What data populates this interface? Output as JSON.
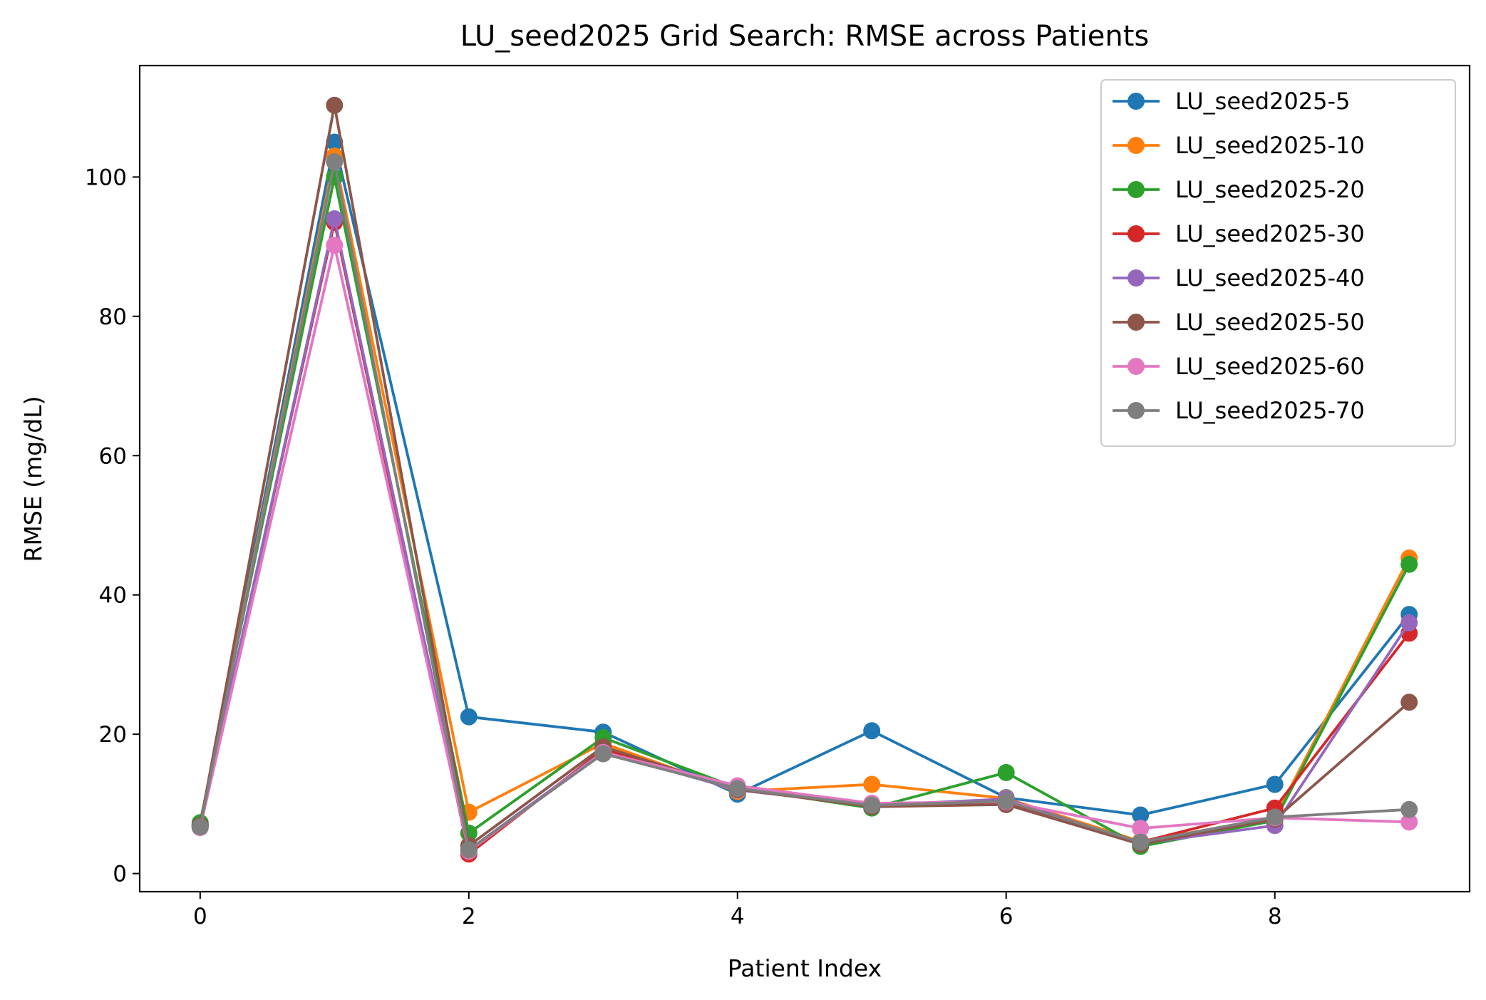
{
  "chart_data": {
    "type": "line",
    "title": "LU_seed2025 Grid Search: RMSE across Patients",
    "xlabel": "Patient Index",
    "ylabel": "RMSE (mg/dL)",
    "x": [
      0,
      1,
      2,
      3,
      4,
      5,
      6,
      7,
      8,
      9
    ],
    "xlim": [
      -0.45,
      9.45
    ],
    "ylim": [
      -2.6,
      116
    ],
    "xticks": [
      0,
      2,
      4,
      6,
      8
    ],
    "yticks": [
      0,
      20,
      40,
      60,
      80,
      100
    ],
    "grid": false,
    "legend_position": "top-right",
    "series": [
      {
        "name": "LU_seed2025-5",
        "color": "#1f77b4",
        "values": [
          7.0,
          105.0,
          22.5,
          20.3,
          11.4,
          20.5,
          10.9,
          8.4,
          12.8,
          37.2
        ]
      },
      {
        "name": "LU_seed2025-10",
        "color": "#ff7f0e",
        "values": [
          6.8,
          103.0,
          8.8,
          18.7,
          11.8,
          12.8,
          10.8,
          4.6,
          8.0,
          45.3
        ]
      },
      {
        "name": "LU_seed2025-20",
        "color": "#2ca02c",
        "values": [
          7.3,
          100.0,
          5.8,
          19.5,
          12.3,
          9.4,
          14.5,
          3.9,
          7.6,
          44.4
        ]
      },
      {
        "name": "LU_seed2025-30",
        "color": "#d62728",
        "values": [
          6.9,
          93.5,
          2.8,
          17.8,
          12.2,
          9.6,
          10.2,
          4.5,
          9.4,
          34.5
        ]
      },
      {
        "name": "LU_seed2025-40",
        "color": "#9467bd",
        "values": [
          6.7,
          94.0,
          3.4,
          17.5,
          12.0,
          9.8,
          10.7,
          4.3,
          6.9,
          36.0
        ]
      },
      {
        "name": "LU_seed2025-50",
        "color": "#8c564b",
        "values": [
          6.9,
          110.3,
          4.0,
          18.2,
          12.1,
          9.6,
          9.9,
          4.2,
          7.8,
          24.6
        ]
      },
      {
        "name": "LU_seed2025-60",
        "color": "#e377c2",
        "values": [
          6.6,
          90.2,
          3.2,
          17.4,
          12.6,
          10.1,
          10.3,
          6.5,
          8.0,
          7.4
        ]
      },
      {
        "name": "LU_seed2025-70",
        "color": "#7f7f7f",
        "values": [
          6.7,
          102.2,
          3.4,
          17.2,
          12.2,
          9.8,
          10.4,
          4.5,
          8.1,
          9.2
        ]
      }
    ]
  }
}
